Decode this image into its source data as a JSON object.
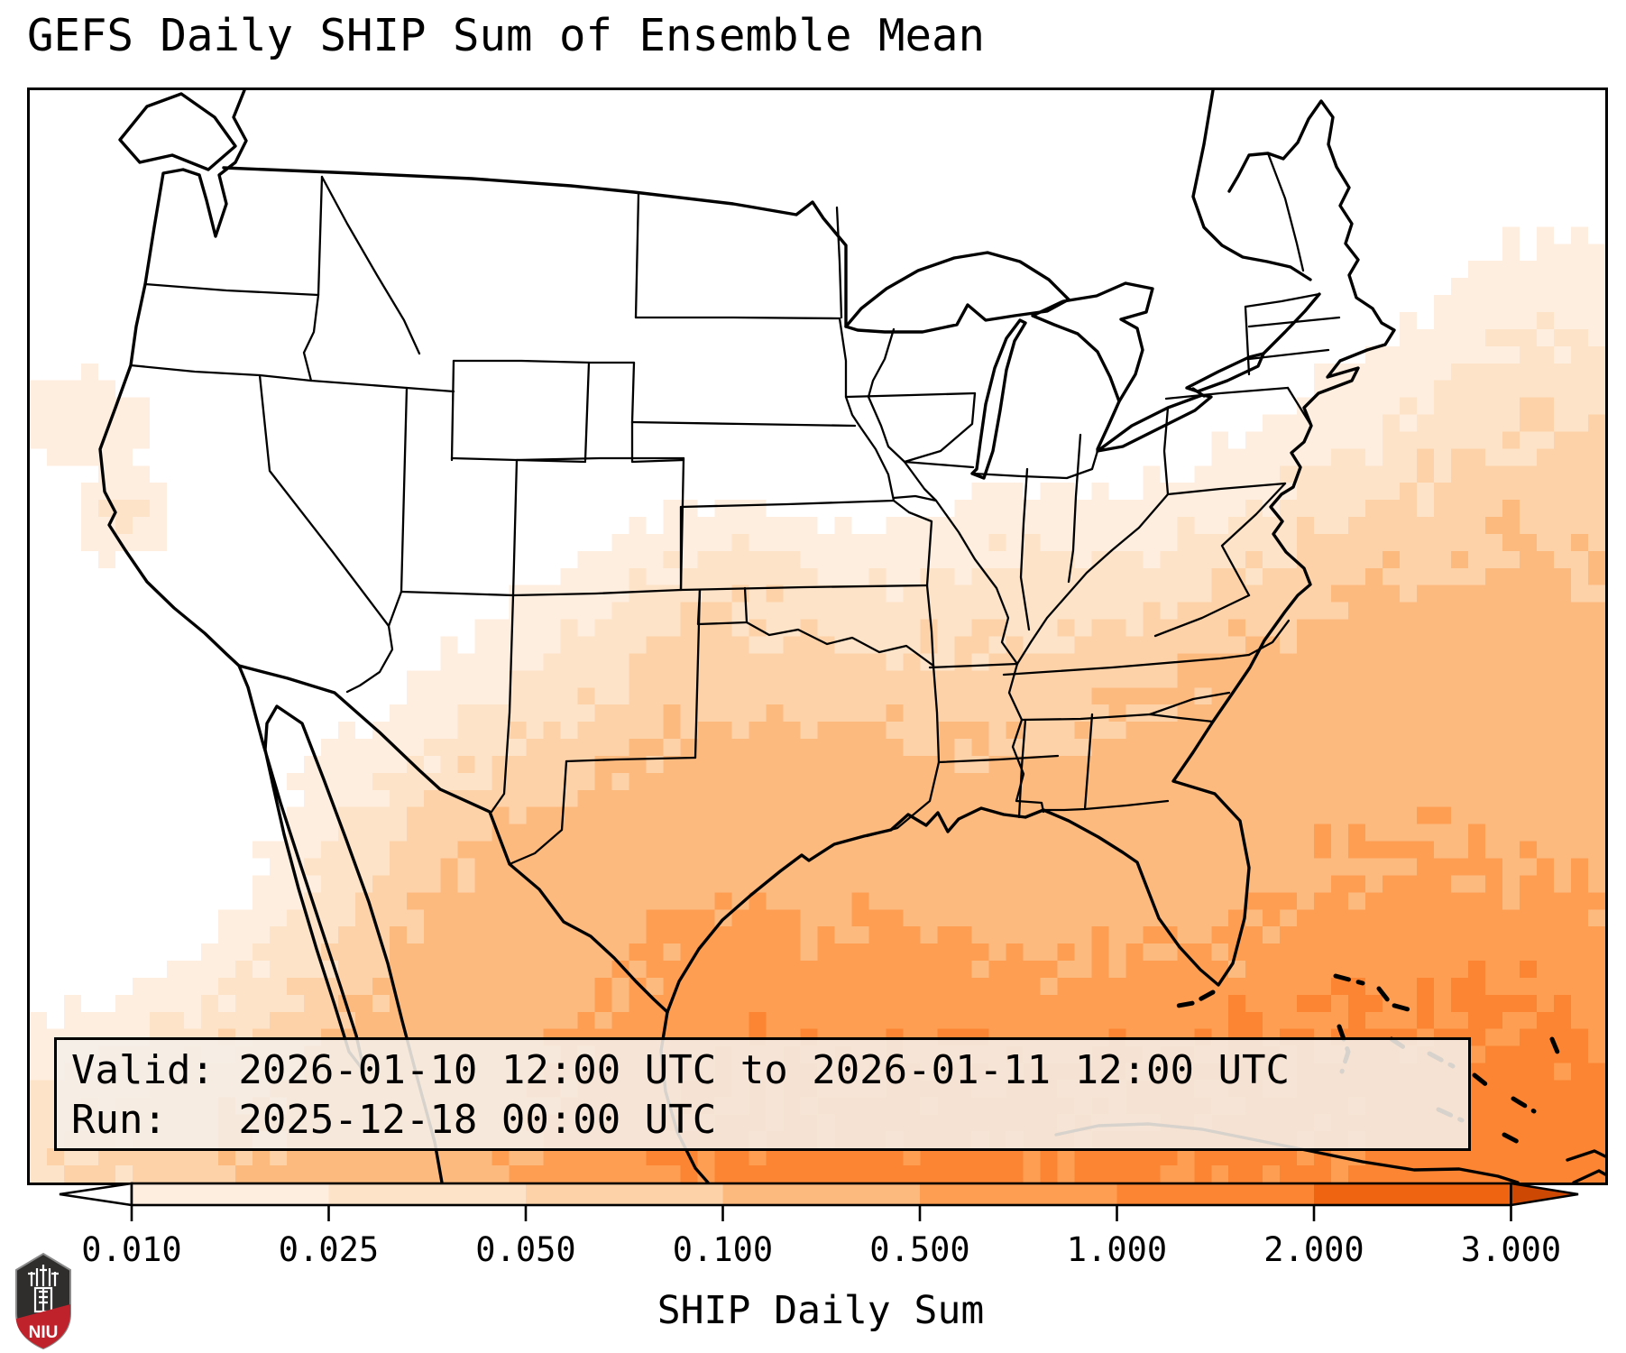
{
  "title": "GEFS Daily SHIP Sum of Ensemble Mean",
  "info_box": {
    "valid_line": "Valid: 2026-01-10 12:00 UTC to 2026-01-11 12:00 UTC",
    "run_line": "Run:   2025-12-18 00:00 UTC"
  },
  "colorbar": {
    "label": "SHIP Daily Sum",
    "tick_labels": [
      "0.010",
      "0.025",
      "0.050",
      "0.100",
      "0.500",
      "1.000",
      "2.000",
      "3.000"
    ],
    "levels": [
      0.01,
      0.025,
      0.05,
      0.1,
      0.5,
      1.0,
      2.0,
      3.0
    ],
    "segment_colors": [
      "#feeedf",
      "#fde3c8",
      "#fdd2a9",
      "#fdba7f",
      "#fd9e53",
      "#fb8532",
      "#ee6410"
    ],
    "under_color": "#ffffff",
    "over_color": "#cd4802",
    "extend": "both"
  },
  "map": {
    "region": "CONUS with northern Mexico, Cuba and Bahamas",
    "line_color": "#000000",
    "background_color": "#ffffff"
  },
  "logo": {
    "text": "NIU",
    "shield_color": "#2f2e2d",
    "banner_color": "#c0222c"
  }
}
